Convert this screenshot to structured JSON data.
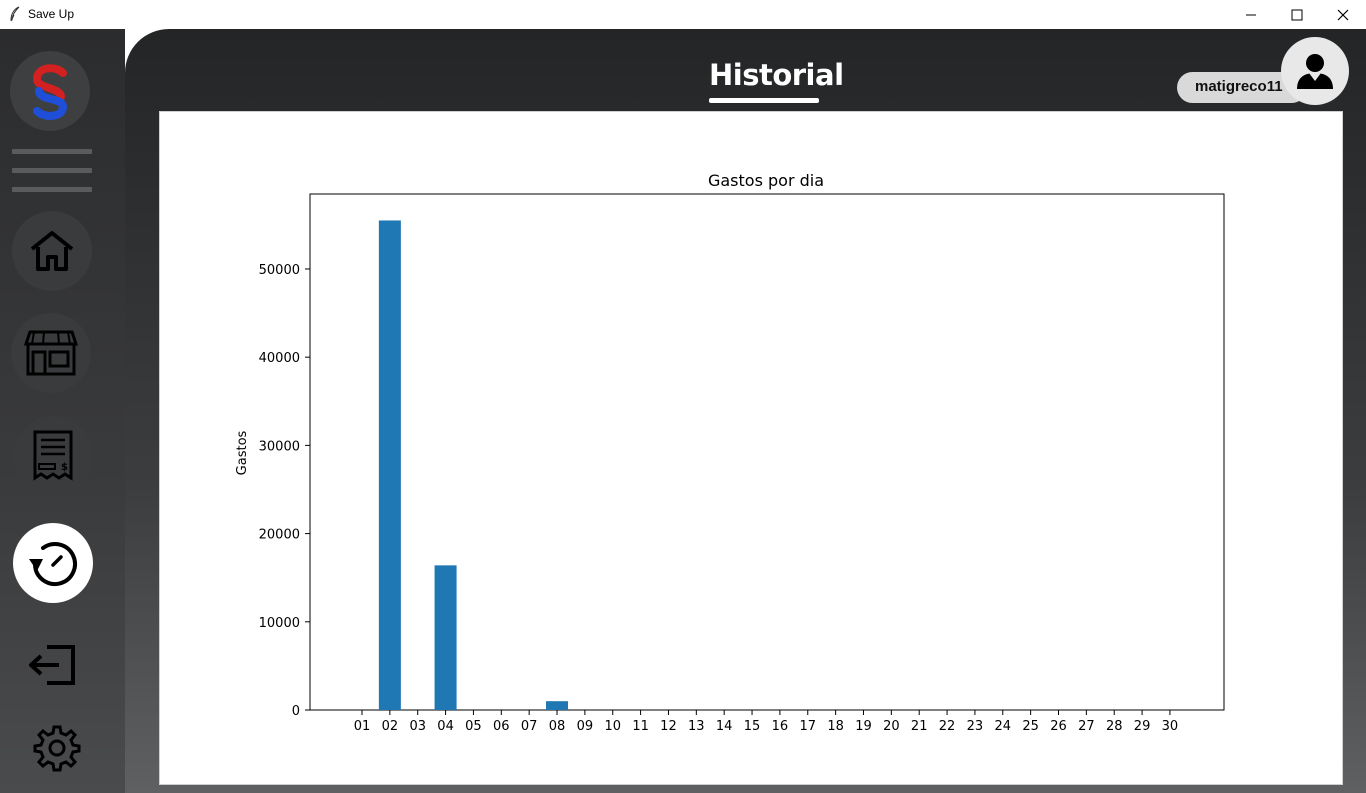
{
  "window": {
    "title": "Save Up",
    "minimize_icon": "minimize-icon",
    "maximize_icon": "maximize-icon",
    "close_icon": "close-icon"
  },
  "sidebar": {
    "items": [
      {
        "name": "logo",
        "icon": "save-up-logo"
      },
      {
        "name": "menu",
        "icon": "hamburger-icon"
      },
      {
        "name": "home",
        "icon": "home-icon"
      },
      {
        "name": "store",
        "icon": "store-icon"
      },
      {
        "name": "bills",
        "icon": "receipt-icon"
      },
      {
        "name": "history",
        "icon": "history-icon",
        "active": true
      },
      {
        "name": "logout",
        "icon": "logout-icon"
      },
      {
        "name": "settings",
        "icon": "gear-icon"
      }
    ]
  },
  "header": {
    "title": "Historial",
    "username": "matigreco11",
    "avatar_icon": "user-icon"
  },
  "chart_data": {
    "type": "bar",
    "title": "Gastos por dia",
    "xlabel": "",
    "ylabel": "Gastos",
    "ylim": [
      0,
      58500
    ],
    "yticks": [
      0,
      10000,
      20000,
      30000,
      40000,
      50000
    ],
    "categories": [
      "01",
      "02",
      "03",
      "04",
      "05",
      "06",
      "07",
      "08",
      "09",
      "10",
      "11",
      "12",
      "13",
      "14",
      "15",
      "16",
      "17",
      "18",
      "19",
      "20",
      "21",
      "22",
      "23",
      "24",
      "25",
      "26",
      "27",
      "28",
      "29",
      "30"
    ],
    "values": [
      0,
      55500,
      0,
      16400,
      0,
      0,
      0,
      1000,
      0,
      0,
      0,
      0,
      0,
      0,
      0,
      0,
      0,
      0,
      0,
      0,
      0,
      0,
      0,
      0,
      0,
      0,
      0,
      0,
      0,
      0
    ],
    "bar_color": "#1f77b4",
    "grid": false
  },
  "colors": {
    "accent": "#1f77b4",
    "logo_red": "#d32020",
    "logo_blue": "#1f4fd8"
  }
}
